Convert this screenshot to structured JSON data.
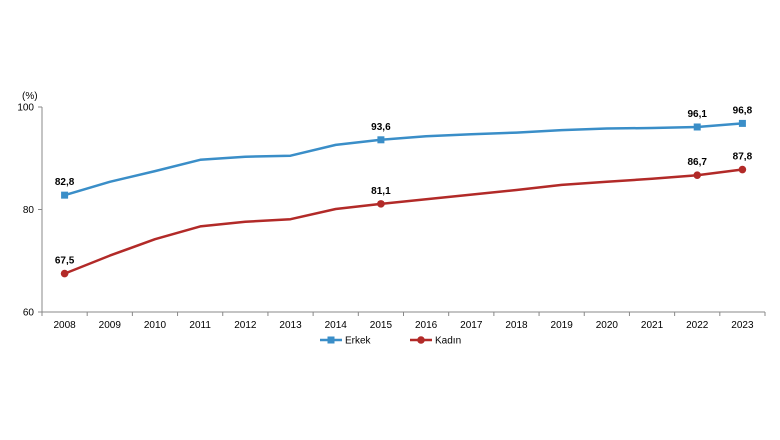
{
  "chart_data": {
    "type": "line",
    "unit_label": "(%)",
    "x": [
      "2008",
      "2009",
      "2010",
      "2011",
      "2012",
      "2013",
      "2014",
      "2015",
      "2016",
      "2017",
      "2018",
      "2019",
      "2020",
      "2021",
      "2022",
      "2023"
    ],
    "ylim": [
      60,
      100
    ],
    "yticks": [
      60,
      80,
      100
    ],
    "grid": false,
    "legend_position": "bottom",
    "series": [
      {
        "name": "Erkek",
        "color": "#3a8ec8",
        "marker": "square",
        "values": [
          82.8,
          85.4,
          87.5,
          89.7,
          90.3,
          90.5,
          92.6,
          93.6,
          94.3,
          94.7,
          95.0,
          95.5,
          95.8,
          95.9,
          96.1,
          96.8
        ],
        "labels": [
          {
            "index": 0,
            "text": "82,8"
          },
          {
            "index": 7,
            "text": "93,6"
          },
          {
            "index": 14,
            "text": "96,1"
          },
          {
            "index": 15,
            "text": "96,8"
          }
        ]
      },
      {
        "name": "Kadın",
        "color": "#b22a28",
        "marker": "circle",
        "values": [
          67.5,
          71.0,
          74.2,
          76.7,
          77.6,
          78.1,
          80.1,
          81.1,
          82.0,
          82.9,
          83.8,
          84.8,
          85.4,
          86.0,
          86.7,
          87.8
        ],
        "labels": [
          {
            "index": 0,
            "text": "67,5"
          },
          {
            "index": 7,
            "text": "81,1"
          },
          {
            "index": 14,
            "text": "86,7"
          },
          {
            "index": 15,
            "text": "87,8"
          }
        ]
      }
    ]
  }
}
